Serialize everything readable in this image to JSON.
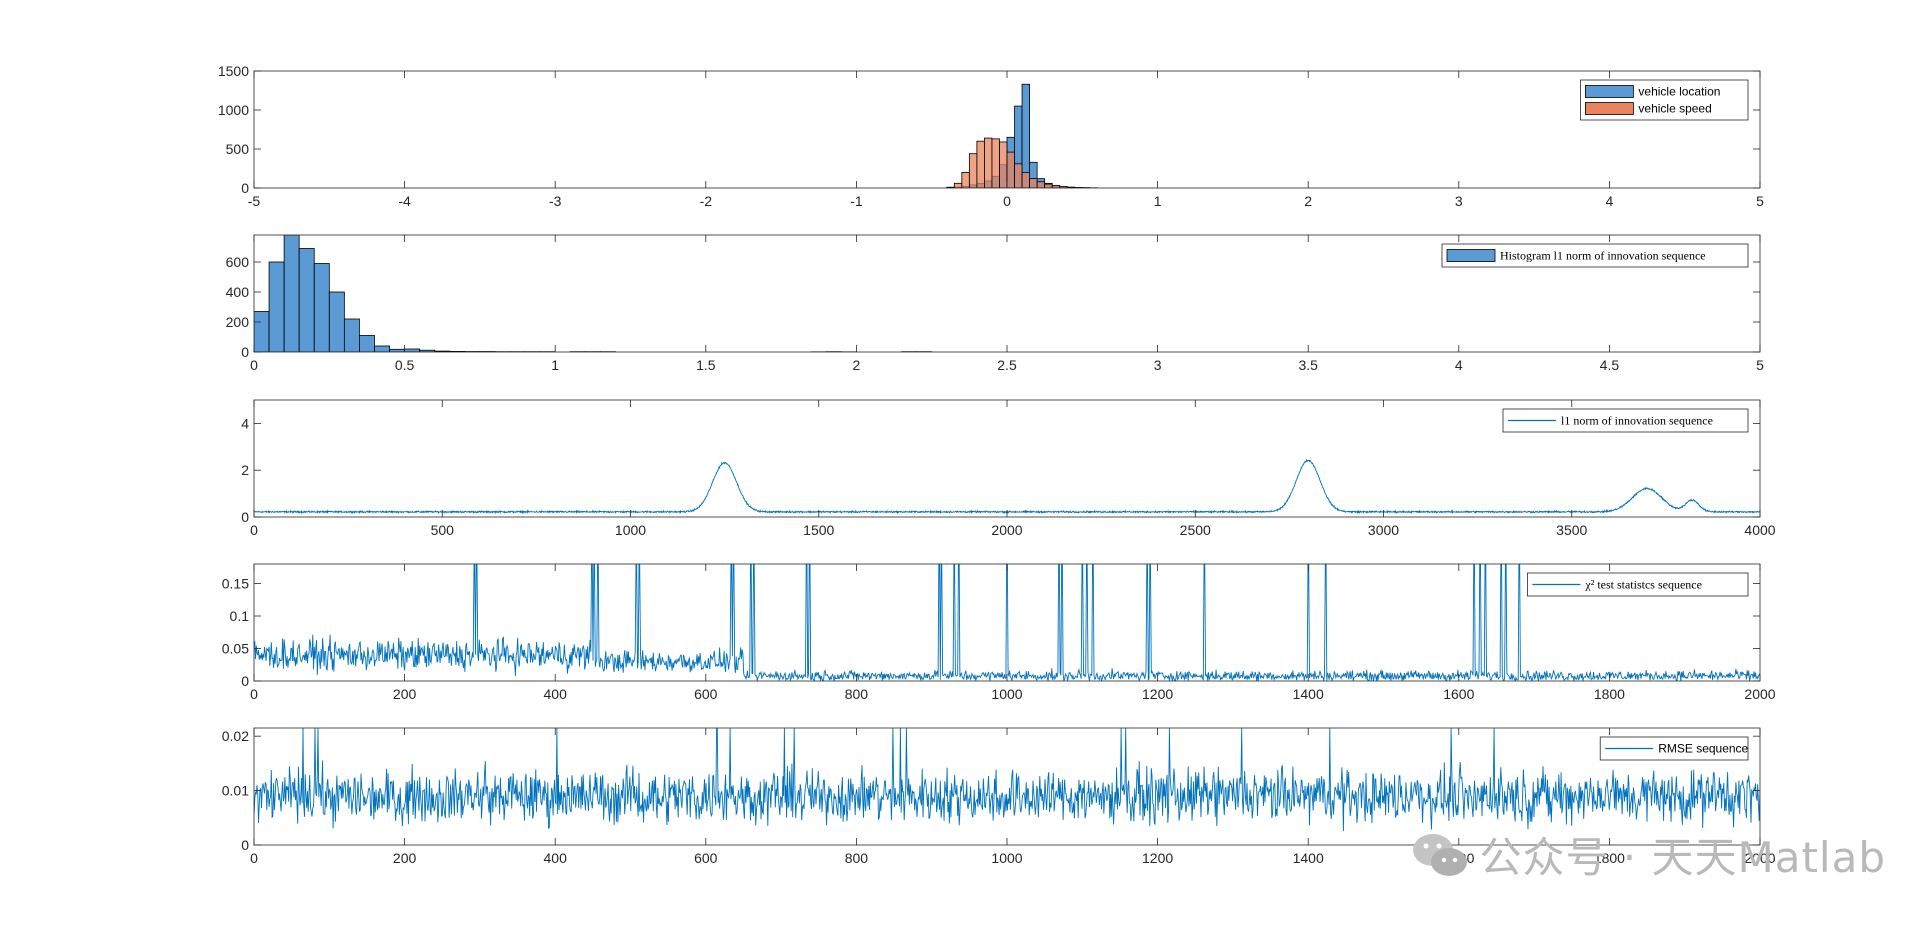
{
  "colors": {
    "blue": "#0072BD",
    "blue_fill": "#5B9BD5",
    "orange_fill": "#E8845F",
    "axis": "#262626",
    "overlap_fill": "#9A6047"
  },
  "watermark": {
    "text": "公众号 · 天天Matlab",
    "icon": "wechat-logo-icon"
  },
  "chart_data": [
    {
      "type": "bar",
      "subtype": "histogram-overlay",
      "xlim": [
        -5,
        5
      ],
      "ylim": [
        0,
        1500
      ],
      "xticks": [
        -5,
        -4,
        -3,
        -2,
        -1,
        0,
        1,
        2,
        3,
        4,
        5
      ],
      "yticks": [
        0,
        500,
        1000,
        1500
      ],
      "grid": false,
      "legend_location": "top-right",
      "bin_width": 0.05,
      "series": [
        {
          "name": "vehicle location",
          "color": "#5B9BD5",
          "bin_start": -0.4,
          "values": [
            5,
            10,
            20,
            40,
            60,
            90,
            150,
            300,
            650,
            1050,
            1330,
            330,
            120,
            60,
            30,
            15,
            10,
            5,
            3,
            2
          ]
        },
        {
          "name": "vehicle speed",
          "color": "#E8845F",
          "bin_start": -0.4,
          "values": [
            10,
            60,
            200,
            440,
            600,
            640,
            630,
            590,
            460,
            310,
            200,
            120,
            80,
            50,
            30,
            18,
            10,
            6,
            4,
            2
          ]
        }
      ]
    },
    {
      "type": "bar",
      "subtype": "histogram",
      "xlim": [
        0,
        5
      ],
      "ylim": [
        0,
        780
      ],
      "xticks": [
        0,
        0.5,
        1,
        1.5,
        2,
        2.5,
        3,
        3.5,
        4,
        4.5,
        5
      ],
      "yticks": [
        0,
        200,
        400,
        600
      ],
      "grid": false,
      "legend_location": "top-right",
      "bin_width": 0.05,
      "series": [
        {
          "name": "Histogram l1 norm of innovation sequence",
          "color": "#5B9BD5",
          "bin_start": 0,
          "values": [
            270,
            600,
            780,
            690,
            590,
            400,
            220,
            110,
            40,
            18,
            20,
            12,
            6,
            4,
            3,
            3,
            2,
            2,
            2,
            2,
            0,
            2,
            2,
            2,
            0,
            0,
            0,
            0,
            0,
            0,
            0,
            0,
            0,
            0,
            0,
            0,
            0,
            1,
            2,
            1,
            0,
            0,
            0,
            2,
            2
          ]
        }
      ]
    },
    {
      "type": "line",
      "xlim": [
        0,
        4000
      ],
      "ylim": [
        0,
        5
      ],
      "xticks": [
        0,
        500,
        1000,
        1500,
        2000,
        2500,
        3000,
        3500,
        4000
      ],
      "yticks": [
        0,
        2,
        4
      ],
      "grid": false,
      "legend_location": "top-right",
      "series": [
        {
          "name": "l1 norm of innovation sequence",
          "color": "#0072BD",
          "n_points": 4000,
          "baseline": 0.22,
          "noise": 0.1,
          "peaks": [
            {
              "x": 1250,
              "y": 2.1,
              "width": 45
            },
            {
              "x": 2800,
              "y": 2.2,
              "width": 45
            },
            {
              "x": 3700,
              "y": 1.0,
              "width": 55
            },
            {
              "x": 3820,
              "y": 0.5,
              "width": 25
            }
          ]
        }
      ]
    },
    {
      "type": "line",
      "xlim": [
        0,
        2000
      ],
      "ylim": [
        0,
        0.18
      ],
      "xticks": [
        0,
        200,
        400,
        600,
        800,
        1000,
        1200,
        1400,
        1600,
        1800,
        2000
      ],
      "yticks": [
        0,
        0.05,
        0.1,
        0.15
      ],
      "grid": false,
      "legend_location": "top-right",
      "series": [
        {
          "name": "χ² test statistcs sequence",
          "color": "#0072BD",
          "n_points": 2000,
          "segments": [
            {
              "from": 0,
              "to": 450,
              "level": 0.04,
              "noise": 0.035
            },
            {
              "from": 450,
              "to": 650,
              "level": 0.03,
              "noise": 0.025
            },
            {
              "from": 650,
              "to": 2000,
              "level": 0.008,
              "noise": 0.012
            }
          ],
          "spikes": [
            293,
            296,
            449,
            452,
            457,
            508,
            512,
            634,
            637,
            660,
            664,
            734,
            738,
            910,
            913,
            930,
            936,
            1000,
            1069,
            1073,
            1100,
            1106,
            1114,
            1186,
            1190,
            1262,
            1400,
            1423,
            1620,
            1628,
            1635,
            1656,
            1662,
            1680
          ]
        }
      ]
    },
    {
      "type": "line",
      "xlim": [
        0,
        2000
      ],
      "ylim": [
        0,
        0.0215
      ],
      "xticks": [
        0,
        200,
        400,
        600,
        800,
        1000,
        1200,
        1400,
        1600,
        1800,
        2000
      ],
      "yticks": [
        0,
        0.01,
        0.02
      ],
      "grid": false,
      "legend_location": "top-right",
      "series": [
        {
          "name": "RMSE sequence",
          "color": "#0072BD",
          "n_points": 2000,
          "mean": 0.009,
          "noise": 0.0045
        }
      ]
    }
  ],
  "axes": [
    {
      "xtick_labels": [
        "-5",
        "-4",
        "-3",
        "-2",
        "-1",
        "0",
        "1",
        "2",
        "3",
        "4",
        "5"
      ],
      "ytick_labels": [
        "0",
        "500",
        "1000",
        "1500"
      ],
      "legend": [
        "vehicle location",
        "vehicle speed"
      ]
    },
    {
      "xtick_labels": [
        "0",
        "0.5",
        "1",
        "1.5",
        "2",
        "2.5",
        "3",
        "3.5",
        "4",
        "4.5",
        "5"
      ],
      "ytick_labels": [
        "0",
        "200",
        "400",
        "600"
      ],
      "legend": [
        "Histogram l1 norm of innovation sequence"
      ]
    },
    {
      "xtick_labels": [
        "0",
        "500",
        "1000",
        "1500",
        "2000",
        "2500",
        "3000",
        "3500",
        "4000"
      ],
      "ytick_labels": [
        "0",
        "2",
        "4"
      ],
      "legend": [
        "l1 norm of innovation sequence"
      ]
    },
    {
      "xtick_labels": [
        "0",
        "200",
        "400",
        "600",
        "800",
        "1000",
        "1200",
        "1400",
        "1600",
        "1800",
        "2000"
      ],
      "ytick_labels": [
        "0",
        "0.05",
        "0.1",
        "0.15"
      ],
      "legend": [
        "χ² test statistcs sequence"
      ]
    },
    {
      "xtick_labels": [
        "0",
        "200",
        "400",
        "600",
        "800",
        "1000",
        "1200",
        "1400",
        "1600",
        "1800",
        "2000"
      ],
      "ytick_labels": [
        "0",
        "0.01",
        "0.02"
      ],
      "legend": [
        "RMSE sequence"
      ]
    }
  ]
}
